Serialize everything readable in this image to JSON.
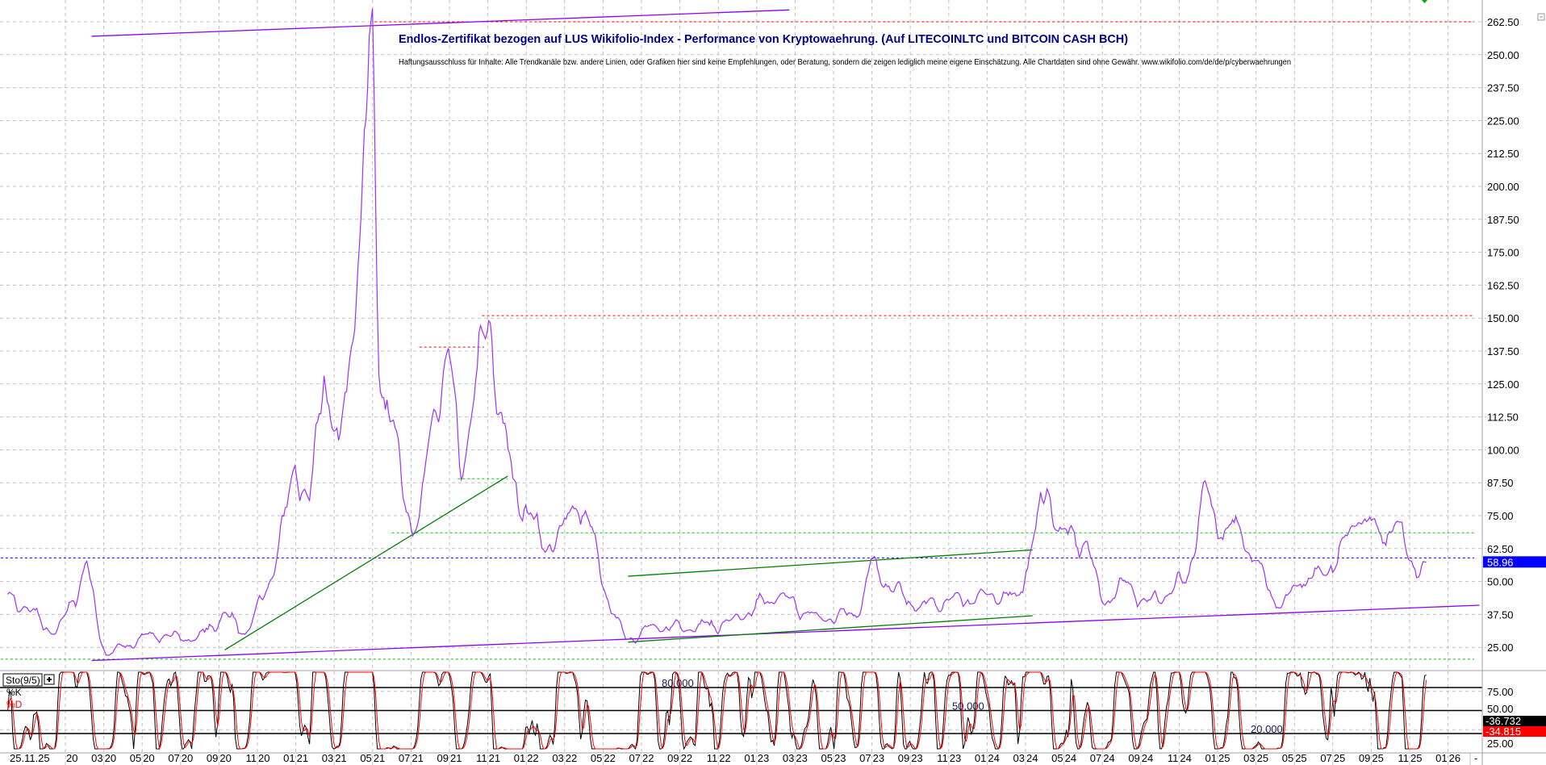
{
  "chart_data": {
    "type": "line",
    "title": "Endlos-Zertifikat bezogen auf LUS Wikifolio-Index - Performance von Kryptowaehrung. (Auf LITECOINLTC und BITCOIN CASH BCH)",
    "subtitle": "Haftungsausschluss für Inhalte: Alle Trendkanäle bzw. andere Linien, oder Grafiken hier sind keine Empfehlungen, oder Beratung, sondern die zeigen lediglich meine eigene Einschätzung. Alle Chartdaten sind ohne Gewähr.  www.wikifolio.com/de/de/p/cyberwaehrungen",
    "ylim": [
      20,
      266
    ],
    "y_ticks": [
      "262.50",
      "250.00",
      "237.50",
      "225.00",
      "212.50",
      "200.00",
      "187.50",
      "175.00",
      "162.50",
      "150.00",
      "137.50",
      "125.00",
      "112.50",
      "100.00",
      "87.50",
      "75.00",
      "62.50",
      "50.00",
      "37.50",
      "25.00"
    ],
    "x_ticks": [
      {
        "date": "2020-01",
        "month": "",
        "year": "20"
      },
      {
        "date": "2020-03",
        "month": "03",
        "year": "20"
      },
      {
        "date": "2020-05",
        "month": "05",
        "year": "20"
      },
      {
        "date": "2020-07",
        "month": "07",
        "year": "20"
      },
      {
        "date": "2020-09",
        "month": "09",
        "year": "20"
      },
      {
        "date": "2020-11",
        "month": "11",
        "year": "20"
      },
      {
        "date": "2021-01",
        "month": "01",
        "year": "21"
      },
      {
        "date": "2021-03",
        "month": "03",
        "year": "21"
      },
      {
        "date": "2021-05",
        "month": "05",
        "year": "21"
      },
      {
        "date": "2021-07",
        "month": "07",
        "year": "21"
      },
      {
        "date": "2021-09",
        "month": "09",
        "year": "21"
      },
      {
        "date": "2021-11",
        "month": "11",
        "year": "21"
      },
      {
        "date": "2022-01",
        "month": "01",
        "year": "22"
      },
      {
        "date": "2022-03",
        "month": "03",
        "year": "22"
      },
      {
        "date": "2022-05",
        "month": "05",
        "year": "22"
      },
      {
        "date": "2022-07",
        "month": "07",
        "year": "22"
      },
      {
        "date": "2022-09",
        "month": "09",
        "year": "22"
      },
      {
        "date": "2022-11",
        "month": "11",
        "year": "22"
      },
      {
        "date": "2023-01",
        "month": "01",
        "year": "23"
      },
      {
        "date": "2023-03",
        "month": "03",
        "year": "23"
      },
      {
        "date": "2023-05",
        "month": "05",
        "year": "23"
      },
      {
        "date": "2023-07",
        "month": "07",
        "year": "23"
      },
      {
        "date": "2023-09",
        "month": "09",
        "year": "23"
      },
      {
        "date": "2023-11",
        "month": "11",
        "year": "23"
      },
      {
        "date": "2024-01",
        "month": "01",
        "year": "24"
      },
      {
        "date": "2024-03",
        "month": "03",
        "year": "24"
      },
      {
        "date": "2024-05",
        "month": "05",
        "year": "24"
      },
      {
        "date": "2024-07",
        "month": "07",
        "year": "24"
      },
      {
        "date": "2024-09",
        "month": "09",
        "year": "24"
      },
      {
        "date": "2024-11",
        "month": "11",
        "year": "24"
      },
      {
        "date": "2025-01",
        "month": "01",
        "year": "25"
      },
      {
        "date": "2025-03",
        "month": "03",
        "year": "25"
      },
      {
        "date": "2025-05",
        "month": "05",
        "year": "25"
      },
      {
        "date": "2025-07",
        "month": "07",
        "year": "25"
      },
      {
        "date": "2025-09",
        "month": "09",
        "year": "25"
      },
      {
        "date": "2025-11",
        "month": "11",
        "year": "25"
      },
      {
        "date": "2026-01",
        "month": "01",
        "year": "26"
      }
    ],
    "x_start_label": "25.11.25",
    "x_end_label": "-",
    "grid": true,
    "series": [
      {
        "color": "#9b30ff",
        "points": [
          [
            "2019-10-01",
            45
          ],
          [
            "2019-11-01",
            40
          ],
          [
            "2019-12-15",
            30
          ],
          [
            "2020-02-05",
            58
          ],
          [
            "2020-03-05",
            22
          ],
          [
            "2020-05-08",
            30
          ],
          [
            "2020-07-25",
            28
          ],
          [
            "2020-09-10",
            38
          ],
          [
            "2020-10-12",
            30
          ],
          [
            "2020-11-20",
            50
          ],
          [
            "2020-12-30",
            95
          ],
          [
            "2021-01-22",
            80
          ],
          [
            "2021-02-15",
            130
          ],
          [
            "2021-03-09",
            100
          ],
          [
            "2021-04-10",
            180
          ],
          [
            "2021-04-21",
            225
          ],
          [
            "2021-05-01",
            262
          ],
          [
            "2021-05-11",
            130
          ],
          [
            "2021-06-04",
            110
          ],
          [
            "2021-06-20",
            80
          ],
          [
            "2021-07-13",
            72
          ],
          [
            "2021-08-06",
            115
          ],
          [
            "2021-08-30",
            138
          ],
          [
            "2021-09-19",
            90
          ],
          [
            "2021-10-08",
            120
          ],
          [
            "2021-11-04",
            150
          ],
          [
            "2021-11-24",
            110
          ],
          [
            "2021-12-10",
            88
          ],
          [
            "2022-01-10",
            75
          ],
          [
            "2022-01-26",
            62
          ],
          [
            "2022-02-27",
            70
          ],
          [
            "2022-03-20",
            80
          ],
          [
            "2022-04-13",
            70
          ],
          [
            "2022-05-06",
            45
          ],
          [
            "2022-06-07",
            28
          ],
          [
            "2022-07-16",
            33
          ],
          [
            "2022-09-18",
            32
          ],
          [
            "2022-11-20",
            35
          ],
          [
            "2023-02-07",
            45
          ],
          [
            "2023-04-09",
            36
          ],
          [
            "2023-06-11",
            38
          ],
          [
            "2023-06-30",
            58
          ],
          [
            "2023-07-28",
            48
          ],
          [
            "2023-09-14",
            40
          ],
          [
            "2023-11-01",
            43
          ],
          [
            "2024-01-02",
            45
          ],
          [
            "2024-02-18",
            44
          ],
          [
            "2024-03-12",
            65
          ],
          [
            "2024-04-05",
            86
          ],
          [
            "2024-04-28",
            68
          ],
          [
            "2024-06-07",
            65
          ],
          [
            "2024-07-01",
            42
          ],
          [
            "2024-08-09",
            50
          ],
          [
            "2024-09-10",
            42
          ],
          [
            "2024-10-11",
            45
          ],
          [
            "2024-11-12",
            50
          ],
          [
            "2024-12-10",
            87
          ],
          [
            "2025-01-06",
            68
          ],
          [
            "2025-02-07",
            70
          ],
          [
            "2025-03-01",
            58
          ],
          [
            "2025-04-09",
            40
          ],
          [
            "2025-05-10",
            50
          ],
          [
            "2025-06-18",
            53
          ],
          [
            "2025-07-19",
            65
          ],
          [
            "2025-08-12",
            75
          ],
          [
            "2025-09-13",
            68
          ],
          [
            "2025-10-10",
            73
          ],
          [
            "2025-10-30",
            58
          ],
          [
            "2025-11-28",
            56
          ]
        ]
      }
    ],
    "last_price": {
      "label": "58.96",
      "value": 58.96,
      "color": "#0000ff"
    },
    "annotations": {
      "trendlines": [
        {
          "color": "#8b00ff",
          "from": [
            "2020-02-12",
            257
          ],
          "to": [
            "2023-02-22",
            267
          ]
        },
        {
          "color": "#8b00ff",
          "from": [
            "2020-02-12",
            20
          ],
          "to": [
            "2026-02-20",
            41
          ]
        },
        {
          "color": "#008000",
          "from": [
            "2020-09-10",
            24
          ],
          "to": [
            "2021-12-02",
            90
          ]
        },
        {
          "color": "#008000",
          "from": [
            "2022-06-10",
            52
          ],
          "to": [
            "2024-03-12",
            62
          ]
        },
        {
          "color": "#008000",
          "from": [
            "2022-06-10",
            27
          ],
          "to": [
            "2024-03-12",
            37
          ]
        }
      ],
      "horizontal_levels": [
        {
          "color": "#ff0000",
          "value": 262.5,
          "from": "2021-05-04"
        },
        {
          "color": "#ff0000",
          "value": 150.96,
          "from": "2021-10-22"
        },
        {
          "color": "#ff0000",
          "value": 139,
          "from": "2021-07-14",
          "to": "2021-10-25"
        },
        {
          "color": "#00cc00",
          "value": 89,
          "from": "2021-09-14",
          "to": "2021-12-02"
        },
        {
          "color": "#00cc00",
          "value": 68.5,
          "from": "2021-06-01"
        },
        {
          "color": "#00cc00",
          "value": 20.5,
          "from": "2019-09-20"
        },
        {
          "color": "#0000ff",
          "value": 58.96,
          "from": "2019-09-20"
        }
      ]
    },
    "indicator": {
      "name": "Sto(9/5)",
      "k_label": "%K",
      "d_label": "%D",
      "k_color": "#000000",
      "d_color": "#ff0000",
      "ylim": [
        0,
        100
      ],
      "levels": [
        {
          "value": 80,
          "label": "80.000"
        },
        {
          "value": 50,
          "label": "50.000"
        },
        {
          "value": 20,
          "label": "20.000"
        }
      ],
      "y_ticks": [
        {
          "value": 75,
          "label": "75.00"
        },
        {
          "value": 50,
          "label": "50.00"
        },
        {
          "value": 25,
          "label": "25.00"
        }
      ],
      "k_last": "36.732",
      "d_last": "34.815"
    }
  }
}
